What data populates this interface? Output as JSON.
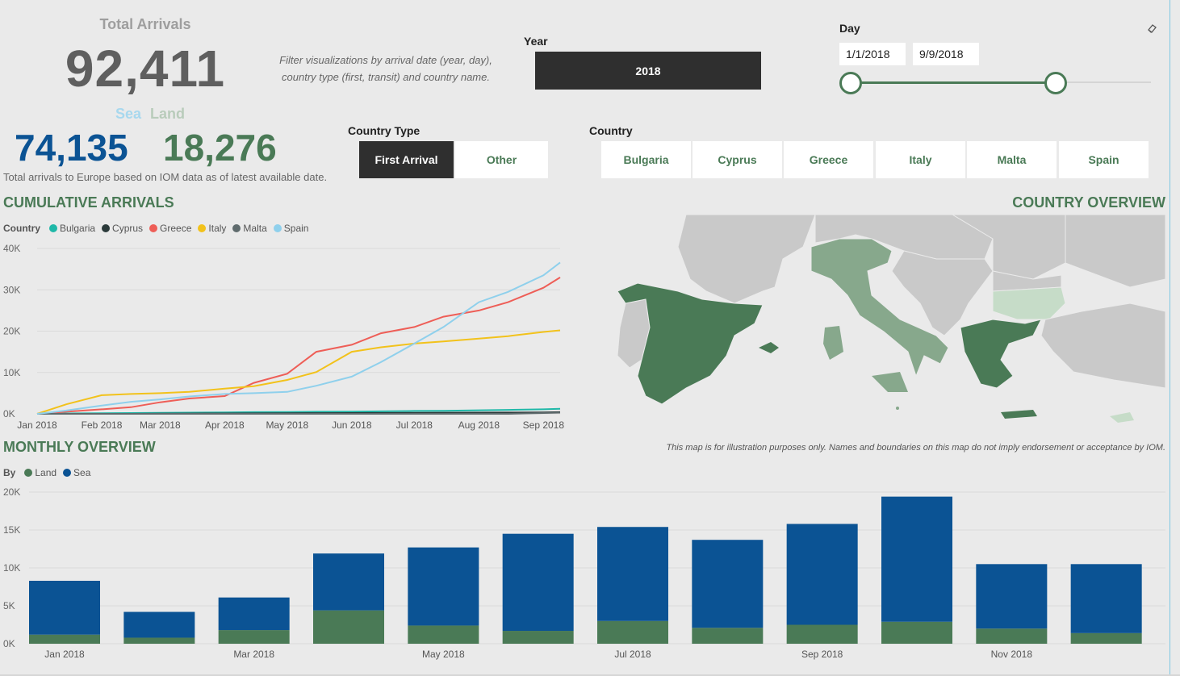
{
  "kpi": {
    "title": "Total Arrivals",
    "total": "92,411",
    "sea_label": "Sea",
    "land_label": "Land",
    "sea_value": "74,135",
    "land_value": "18,276",
    "subtitle": "Total arrivals to Europe based on IOM data as of latest available date."
  },
  "filter_note_1": "Filter visualizations by arrival date (year, day),",
  "filter_note_2": "country type (first, transit) and country name.",
  "year_slicer": {
    "label": "Year",
    "selected": "2018"
  },
  "day_slicer": {
    "label": "Day",
    "start": "1/1/2018",
    "end": "9/9/2018",
    "range_fraction": [
      0,
      0.68
    ]
  },
  "country_type": {
    "label": "Country Type",
    "options": [
      "First Arrival",
      "Other"
    ],
    "selected": "First Arrival"
  },
  "country_slicer": {
    "label": "Country",
    "options": [
      "Bulgaria",
      "Cyprus",
      "Greece",
      "Italy",
      "Malta",
      "Spain"
    ]
  },
  "cumulative": {
    "title": "CUMULATIVE ARRIVALS",
    "legend_title": "Country"
  },
  "country_overview": {
    "title": "COUNTRY OVERVIEW",
    "note": "This map is for illustration purposes only. Names and boundaries on this map do not imply endorsement or acceptance by IOM."
  },
  "monthly": {
    "title": "MONTHLY OVERVIEW",
    "legend_title": "By"
  },
  "colors": {
    "Bulgaria": "#1fb8a8",
    "Cyprus": "#2b3a3a",
    "Greece": "#ee5e57",
    "Italy": "#f2c21b",
    "Malta": "#5f6b6d",
    "Spain": "#8fd0ec",
    "land": "#4a7a56",
    "sea": "#0b5394",
    "accent_green": "#4a7a56"
  },
  "chart_data": [
    {
      "type": "line",
      "title": "CUMULATIVE ARRIVALS",
      "legend_title": "Country",
      "x_ticks": [
        "Jan 2018",
        "Feb 2018",
        "Mar 2018",
        "Apr 2018",
        "May 2018",
        "Jun 2018",
        "Jul 2018",
        "Aug 2018",
        "Sep 2018"
      ],
      "y_ticks": [
        "0K",
        "10K",
        "20K",
        "30K",
        "40K"
      ],
      "ylim": [
        0,
        40000
      ],
      "x": [
        "2018-01-01",
        "2018-01-15",
        "2018-02-01",
        "2018-02-15",
        "2018-03-01",
        "2018-03-15",
        "2018-04-01",
        "2018-04-15",
        "2018-05-01",
        "2018-05-15",
        "2018-06-01",
        "2018-06-15",
        "2018-07-01",
        "2018-07-15",
        "2018-08-01",
        "2018-08-15",
        "2018-09-01",
        "2018-09-09"
      ],
      "series": [
        {
          "name": "Bulgaria",
          "values": [
            0,
            100,
            150,
            200,
            250,
            300,
            350,
            400,
            450,
            500,
            550,
            600,
            700,
            750,
            850,
            950,
            1100,
            1200
          ]
        },
        {
          "name": "Cyprus",
          "values": [
            0,
            0,
            0,
            0,
            50,
            80,
            100,
            120,
            150,
            170,
            200,
            220,
            250,
            280,
            300,
            320,
            350,
            400
          ]
        },
        {
          "name": "Greece",
          "values": [
            0,
            500,
            1100,
            1600,
            2800,
            3700,
            4300,
            7500,
            9700,
            15000,
            16700,
            19500,
            21000,
            23500,
            25000,
            27000,
            30500,
            33000
          ]
        },
        {
          "name": "Italy",
          "values": [
            0,
            2300,
            4500,
            4800,
            5000,
            5300,
            6100,
            6700,
            8200,
            10100,
            15000,
            16100,
            17000,
            17500,
            18200,
            18800,
            19800,
            20200
          ]
        },
        {
          "name": "Malta",
          "values": [
            0,
            0,
            0,
            0,
            0,
            0,
            0,
            0,
            0,
            0,
            0,
            0,
            0,
            0,
            0,
            0,
            200,
            300
          ]
        },
        {
          "name": "Spain",
          "values": [
            0,
            800,
            2000,
            2900,
            3500,
            4200,
            4800,
            5000,
            5300,
            6800,
            9000,
            12500,
            17000,
            21000,
            27000,
            29500,
            33500,
            36600
          ]
        }
      ]
    },
    {
      "type": "bar",
      "title": "MONTHLY OVERVIEW",
      "legend_title": "By",
      "stacked": true,
      "categories": [
        "Jan 2018",
        "Feb 2018",
        "Mar 2018",
        "Apr 2018",
        "May 2018",
        "Jun 2018",
        "Jul 2018",
        "Aug 2018",
        "Sep 2018",
        "Oct 2018",
        "Nov 2018",
        "Dec 2018"
      ],
      "x_tick_labels": [
        "Jan 2018",
        "",
        "Mar 2018",
        "",
        "May 2018",
        "",
        "Jul 2018",
        "",
        "Sep 2018",
        "",
        "Nov 2018",
        ""
      ],
      "y_ticks": [
        "0K",
        "5K",
        "10K",
        "15K",
        "20K"
      ],
      "ylim": [
        0,
        20000
      ],
      "series": [
        {
          "name": "Land",
          "values": [
            1200,
            800,
            1800,
            4400,
            2400,
            1700,
            3000,
            2100,
            2500,
            2900,
            2000,
            1400
          ]
        },
        {
          "name": "Sea",
          "values": [
            7100,
            3400,
            4300,
            7500,
            10300,
            12800,
            12400,
            11600,
            13300,
            16500,
            8500,
            9100
          ]
        }
      ]
    }
  ]
}
